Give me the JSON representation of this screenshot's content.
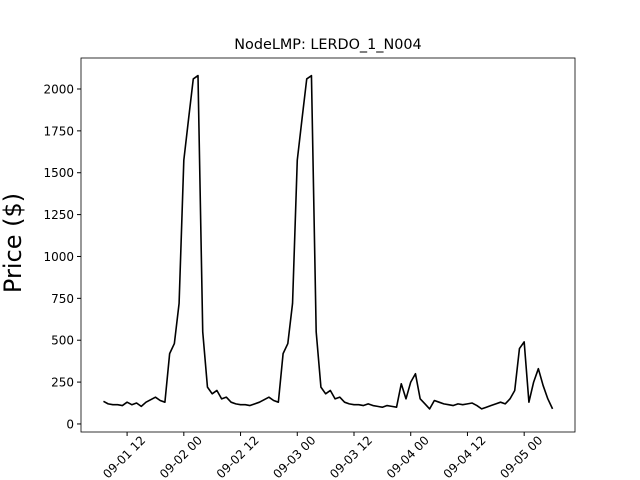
{
  "chart_data": {
    "type": "line",
    "title": "NodeLMP: LERDO_1_N004",
    "ylabel": "Price ($)",
    "x": [
      "09-01 07",
      "09-01 08",
      "09-01 09",
      "09-01 10",
      "09-01 11",
      "09-01 12",
      "09-01 13",
      "09-01 14",
      "09-01 15",
      "09-01 16",
      "09-01 17",
      "09-01 18",
      "09-01 19",
      "09-01 20",
      "09-01 21",
      "09-01 22",
      "09-01 23",
      "09-02 00",
      "09-02 01",
      "09-02 02",
      "09-02 03",
      "09-02 04",
      "09-02 05",
      "09-02 06",
      "09-02 07",
      "09-02 08",
      "09-02 09",
      "09-02 10",
      "09-02 11",
      "09-02 12",
      "09-02 13",
      "09-02 14",
      "09-02 15",
      "09-02 16",
      "09-02 17",
      "09-02 18",
      "09-02 19",
      "09-02 20",
      "09-02 21",
      "09-02 22",
      "09-02 23",
      "09-03 00",
      "09-03 01",
      "09-03 02",
      "09-03 03",
      "09-03 04",
      "09-03 05",
      "09-03 06",
      "09-03 07",
      "09-03 08",
      "09-03 09",
      "09-03 10",
      "09-03 11",
      "09-03 12",
      "09-03 13",
      "09-03 14",
      "09-03 15",
      "09-03 16",
      "09-03 17",
      "09-03 18",
      "09-03 19",
      "09-03 20",
      "09-03 21",
      "09-03 22",
      "09-03 23",
      "09-04 00",
      "09-04 01",
      "09-04 02",
      "09-04 03",
      "09-04 04",
      "09-04 05",
      "09-04 06",
      "09-04 07",
      "09-04 08",
      "09-04 09",
      "09-04 10",
      "09-04 11",
      "09-04 12",
      "09-04 13",
      "09-04 14",
      "09-04 15",
      "09-04 16",
      "09-04 17",
      "09-04 18",
      "09-04 19",
      "09-04 20",
      "09-04 21",
      "09-04 22",
      "09-04 23",
      "09-05 00",
      "09-05 01",
      "09-05 02",
      "09-05 03",
      "09-05 04",
      "09-05 05",
      "09-05 06"
    ],
    "series": [
      {
        "name": "LERDO_1_N004",
        "color": "#000000",
        "values": [
          135,
          120,
          115,
          115,
          110,
          130,
          115,
          125,
          105,
          130,
          145,
          160,
          140,
          130,
          420,
          480,
          720,
          1575,
          1820,
          2060,
          2080,
          550,
          220,
          180,
          200,
          150,
          160,
          130,
          120,
          115,
          115,
          110,
          120,
          130,
          145,
          160,
          140,
          130,
          420,
          480,
          720,
          1575,
          1820,
          2060,
          2080,
          550,
          220,
          180,
          200,
          150,
          160,
          130,
          120,
          115,
          115,
          110,
          120,
          110,
          105,
          100,
          110,
          105,
          100,
          240,
          150,
          250,
          300,
          150,
          120,
          90,
          140,
          130,
          120,
          115,
          110,
          120,
          115,
          120,
          125,
          110,
          90,
          100,
          110,
          120,
          130,
          120,
          150,
          200,
          450,
          490,
          130,
          250,
          330,
          230,
          150,
          90
        ]
      }
    ],
    "xlim": [
      "09-01 02:15",
      "09-05 10:45"
    ],
    "xticks": [
      "09-01 12",
      "09-02 00",
      "09-02 12",
      "09-03 00",
      "09-03 12",
      "09-04 00",
      "09-04 12",
      "09-05 00"
    ],
    "ylim": [
      -48,
      2185
    ],
    "yticks": [
      0,
      250,
      500,
      750,
      1000,
      1250,
      1500,
      1750,
      2000
    ]
  }
}
